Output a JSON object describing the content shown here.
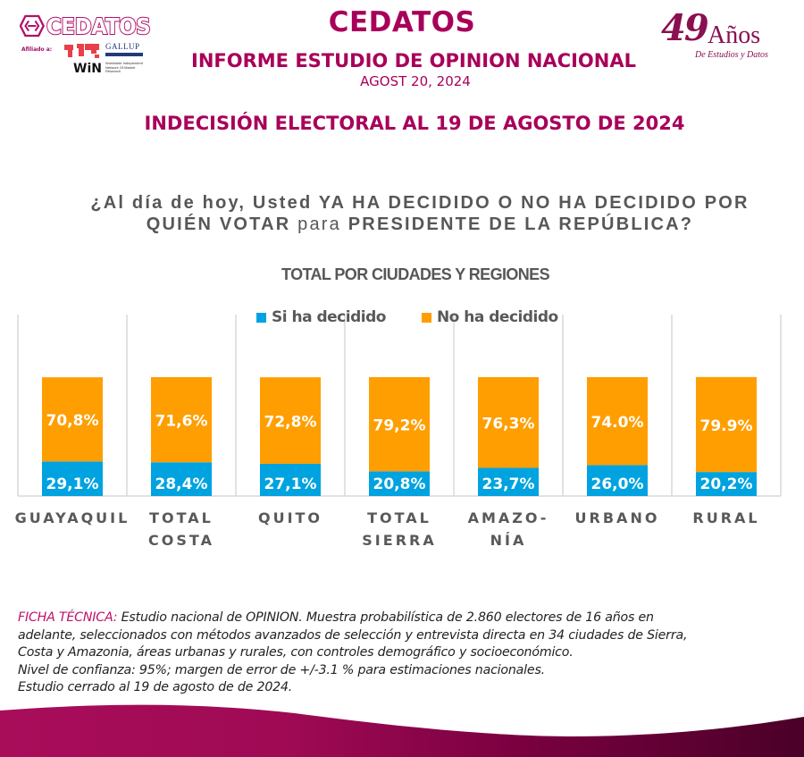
{
  "header": {
    "brand_logo_text": "CEDATOS",
    "affiliated_label": "Afiliado a:",
    "gallup_label": "GALLUP",
    "gallup_sub": "INTERNATIONAL",
    "win_label": "WiN",
    "win_sub": "Worldwide Independent Network Of Market Research",
    "title": "CEDATOS",
    "subtitle": "INFORME ESTUDIO DE OPINION NACIONAL",
    "date": "AGOST 20, 2024",
    "section_title": "INDECISIÓN ELECTORAL AL 19 DE AGOSTO DE 2024",
    "anniversary": {
      "number": "49",
      "word": "Años",
      "tagline": "De Estudios y Datos"
    }
  },
  "question": {
    "part1": "¿Al día de hoy, Usted YA HA DECIDIDO O NO HA DECIDIDO POR QUIÉN VOTAR ",
    "part2": "para",
    "part3": " PRESIDENTE DE LA REPÚBLICA?"
  },
  "colors": {
    "brand": "#a8005a",
    "decided": "#00a3e0",
    "undecided": "#ff9e00",
    "text_gray": "#595959"
  },
  "chart_data": {
    "type": "bar",
    "stacked": true,
    "title": "TOTAL POR CIUDADES Y REGIONES",
    "xlabel": "",
    "ylabel": "",
    "ylim": [
      0,
      100
    ],
    "grid": false,
    "legend_position": "top-center",
    "categories": [
      "GUAYAQUIL",
      "TOTAL COSTA",
      "QUITO",
      "TOTAL SIERRA",
      "AMAZO- NÍA",
      "URBANO",
      "RURAL"
    ],
    "category_lines": [
      [
        "GUAYAQUIL"
      ],
      [
        "TOTAL",
        "COSTA"
      ],
      [
        "QUITO"
      ],
      [
        "TOTAL",
        "SIERRA"
      ],
      [
        "AMAZO-",
        "NÍA"
      ],
      [
        "URBANO"
      ],
      [
        "RURAL"
      ]
    ],
    "series": [
      {
        "name": "Si ha decidido",
        "color": "#00a3e0",
        "values": [
          29.1,
          28.4,
          27.1,
          20.8,
          23.7,
          26.0,
          20.2
        ],
        "labels": [
          "29,1%",
          "28,4%",
          "27,1%",
          "20,8%",
          "23,7%",
          "26,0%",
          "20,2%"
        ]
      },
      {
        "name": "No ha decidido",
        "color": "#ff9e00",
        "values": [
          70.8,
          71.6,
          72.8,
          79.2,
          76.3,
          74.0,
          79.9
        ],
        "labels": [
          "70,8%",
          "71,6%",
          "72,8%",
          "79,2%",
          "76,3%",
          "74.0%",
          "79.9%"
        ]
      }
    ]
  },
  "footer": {
    "ficha_label": "FICHA TÉCNICA:",
    "ficha_lines": [
      " Estudio nacional de OPINION. Muestra probabilística de 2.860 electores de 16 años en",
      "adelante,  seleccionados con métodos avanzados de selección y entrevista directa en 34 ciudades de Sierra,",
      "Costa y Amazonia, áreas urbanas y rurales, con controles demográfico y socioeconómico.",
      "Nivel de confianza: 95%; margen de error de +/-3.1 % para estimaciones nacionales.",
      "Estudio cerrado al 19 de agosto de de 2024."
    ]
  }
}
